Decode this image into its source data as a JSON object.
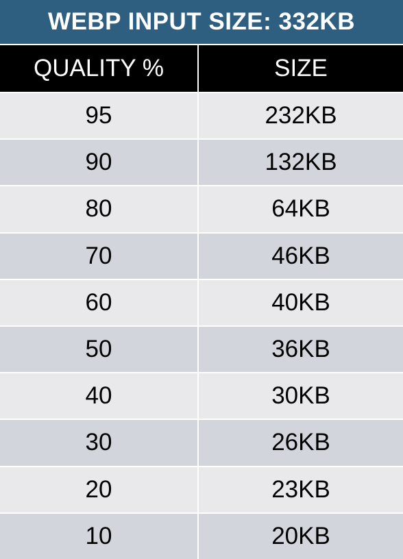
{
  "title": "WEBP INPUT SIZE: 332KB",
  "columns": [
    "QUALITY %",
    "SIZE"
  ],
  "rows": [
    {
      "quality": "95",
      "size": "232KB"
    },
    {
      "quality": "90",
      "size": "132KB"
    },
    {
      "quality": "80",
      "size": "64KB"
    },
    {
      "quality": "70",
      "size": "46KB"
    },
    {
      "quality": "60",
      "size": "40KB"
    },
    {
      "quality": "50",
      "size": "36KB"
    },
    {
      "quality": "40",
      "size": "30KB"
    },
    {
      "quality": "30",
      "size": "26KB"
    },
    {
      "quality": "20",
      "size": "23KB"
    },
    {
      "quality": "10",
      "size": "20KB"
    }
  ],
  "colors": {
    "title_bg": "#2f5f80",
    "header_bg": "#000000",
    "row_light": "#e9e9eb",
    "row_dark": "#d2d5db"
  }
}
